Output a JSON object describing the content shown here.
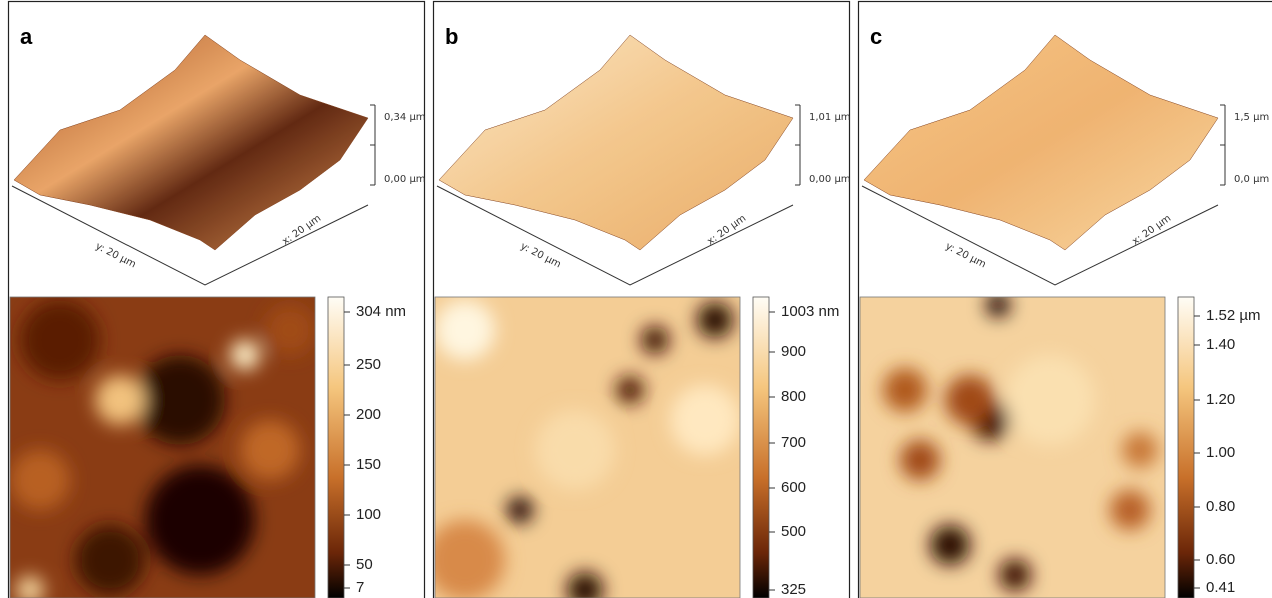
{
  "panels": [
    {
      "label": "a",
      "surface": {
        "y_axis": "y: 20 µm",
        "x_axis": "x: 20 µm",
        "z_top": "0,34 µm",
        "z_bottom": "0,00 µm"
      },
      "colorbar": [
        "304 nm",
        "250",
        "200",
        "150",
        "100",
        "50",
        "7"
      ]
    },
    {
      "label": "b",
      "surface": {
        "y_axis": "y: 20 µm",
        "x_axis": "x: 20 µm",
        "z_top": "1,01 µm",
        "z_bottom": "0,00 µm"
      },
      "colorbar": [
        "1003 nm",
        "900",
        "800",
        "700",
        "600",
        "500",
        "325"
      ]
    },
    {
      "label": "c",
      "surface": {
        "y_axis": "y: 20 µm",
        "x_axis": "x: 20 µm",
        "z_top": "1,5 µm",
        "z_bottom": "0,0 µm"
      },
      "colorbar": [
        "1.52 µm",
        "1.40",
        "1.20",
        "1.00",
        "0.80",
        "0.60",
        "0.41"
      ]
    }
  ]
}
